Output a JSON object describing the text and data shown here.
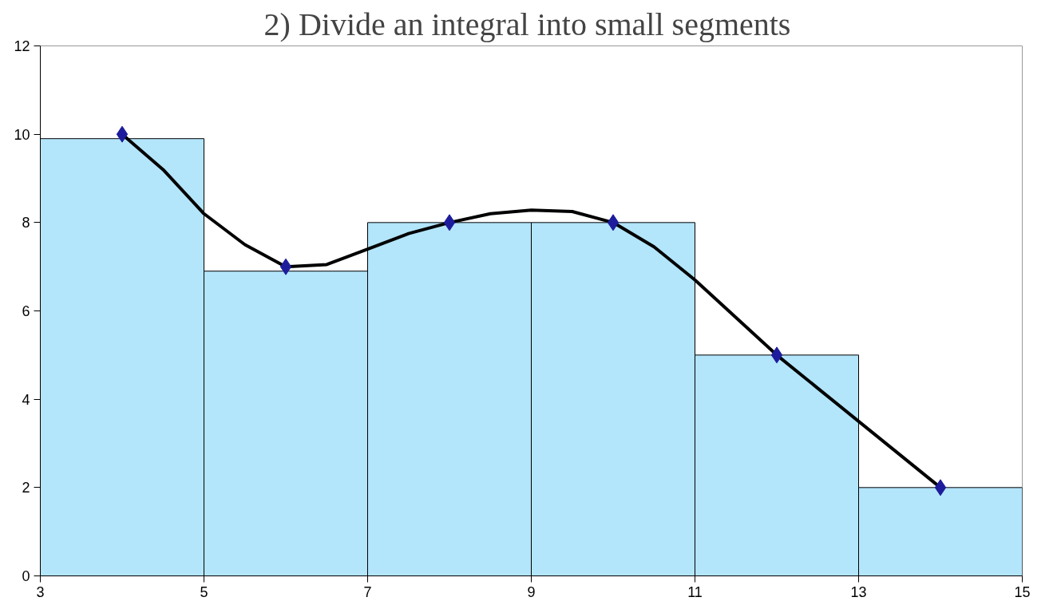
{
  "chart_data": {
    "type": "histogram",
    "title": "2)  Divide an integral into small segments",
    "bins": [
      3,
      5,
      7,
      9,
      11,
      13,
      15
    ],
    "values": [
      9.9,
      6.9,
      8,
      8,
      5,
      2
    ],
    "color": "#b3e5fb",
    "series": [
      {
        "type": "line",
        "x": [
          4,
          4.5,
          5,
          5.5,
          6,
          6.5,
          7,
          7.5,
          8,
          8.5,
          9,
          9.5,
          10,
          10.5,
          11,
          11.5,
          12,
          12.5,
          13,
          13.5,
          14
        ],
        "values": [
          10,
          9.2,
          8.2,
          7.5,
          7.0,
          7.05,
          7.4,
          7.75,
          8.0,
          8.2,
          8.28,
          8.25,
          8.0,
          7.45,
          6.7,
          5.85,
          5.0,
          4.25,
          3.5,
          2.75,
          2.0
        ],
        "color": "#000000"
      },
      {
        "type": "scatter",
        "x": [
          4,
          6,
          8,
          10,
          12,
          14
        ],
        "values": [
          10,
          7,
          8,
          8,
          5,
          2
        ],
        "color": "#1c1c9c",
        "marker": "diamond"
      }
    ],
    "xlim": [
      3,
      15
    ],
    "xticks": [
      3,
      5,
      7,
      9,
      11,
      13,
      15
    ],
    "ylim": [
      0,
      12
    ],
    "yticks": [
      0,
      2,
      4,
      6,
      8,
      10,
      12
    ],
    "grid": false
  }
}
